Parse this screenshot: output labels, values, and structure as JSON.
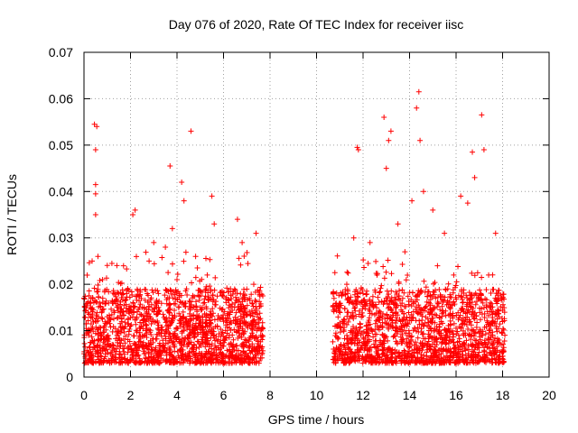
{
  "chart_data": {
    "type": "scatter",
    "title": "Day 076 of 2020, Rate Of TEC Index for receiver iisc",
    "xlabel": "GPS time / hours",
    "ylabel": "ROTI / TECUs",
    "xlim": [
      0,
      20
    ],
    "ylim": [
      0,
      0.07
    ],
    "xticks": [
      0,
      2,
      4,
      6,
      8,
      10,
      12,
      14,
      16,
      18,
      20
    ],
    "xtick_labels": [
      "0",
      "2",
      "4",
      "6",
      "8",
      "10",
      "12",
      "14",
      "16",
      "18",
      "20"
    ],
    "yticks": [
      0,
      0.01,
      0.02,
      0.03,
      0.04,
      0.05,
      0.06,
      0.07
    ],
    "ytick_labels": [
      "0",
      "0.01",
      "0.02",
      "0.03",
      "0.04",
      "0.05",
      "0.06",
      "0.07"
    ],
    "grid": true,
    "legend": "none",
    "marker": "plus",
    "marker_color": "#ff0000",
    "series": [
      {
        "name": "ROTI",
        "segments": [
          {
            "x_start": 0.0,
            "x_end": 7.7
          },
          {
            "x_start": 10.7,
            "x_end": 18.1
          }
        ],
        "points": [
          [
            0.05,
            0.0065
          ],
          [
            0.1,
            0.0115
          ],
          [
            0.2,
            0.009
          ],
          [
            0.3,
            0.017
          ],
          [
            0.35,
            0.025
          ],
          [
            0.45,
            0.0545
          ],
          [
            0.5,
            0.0395
          ],
          [
            0.5,
            0.049
          ],
          [
            0.5,
            0.0415
          ],
          [
            0.5,
            0.035
          ],
          [
            0.55,
            0.054
          ],
          [
            0.6,
            0.026
          ],
          [
            0.8,
            0.021
          ],
          [
            1.0,
            0.013
          ],
          [
            1.2,
            0.0245
          ],
          [
            1.5,
            0.018
          ],
          [
            1.7,
            0.024
          ],
          [
            2.0,
            0.011
          ],
          [
            2.1,
            0.035
          ],
          [
            2.2,
            0.036
          ],
          [
            2.5,
            0.015
          ],
          [
            2.8,
            0.025
          ],
          [
            3.0,
            0.029
          ],
          [
            3.2,
            0.018
          ],
          [
            3.5,
            0.028
          ],
          [
            3.7,
            0.0455
          ],
          [
            3.8,
            0.032
          ],
          [
            4.0,
            0.021
          ],
          [
            4.2,
            0.042
          ],
          [
            4.3,
            0.038
          ],
          [
            4.6,
            0.053
          ],
          [
            4.8,
            0.026
          ],
          [
            5.0,
            0.015
          ],
          [
            5.3,
            0.022
          ],
          [
            5.5,
            0.039
          ],
          [
            5.6,
            0.033
          ],
          [
            6.0,
            0.012
          ],
          [
            6.3,
            0.019
          ],
          [
            6.6,
            0.034
          ],
          [
            6.8,
            0.029
          ],
          [
            7.0,
            0.011
          ],
          [
            7.3,
            0.02
          ],
          [
            7.4,
            0.031
          ],
          [
            7.6,
            0.009
          ],
          [
            10.8,
            0.011
          ],
          [
            11.0,
            0.015
          ],
          [
            11.3,
            0.02
          ],
          [
            11.6,
            0.03
          ],
          [
            11.75,
            0.0495
          ],
          [
            11.8,
            0.049
          ],
          [
            12.0,
            0.018
          ],
          [
            12.3,
            0.029
          ],
          [
            12.6,
            0.022
          ],
          [
            12.9,
            0.056
          ],
          [
            13.0,
            0.045
          ],
          [
            13.1,
            0.051
          ],
          [
            13.2,
            0.053
          ],
          [
            13.5,
            0.033
          ],
          [
            13.8,
            0.027
          ],
          [
            14.1,
            0.038
          ],
          [
            14.3,
            0.058
          ],
          [
            14.4,
            0.0615
          ],
          [
            14.45,
            0.051
          ],
          [
            14.6,
            0.04
          ],
          [
            15.0,
            0.036
          ],
          [
            15.2,
            0.024
          ],
          [
            15.5,
            0.031
          ],
          [
            15.9,
            0.022
          ],
          [
            16.2,
            0.039
          ],
          [
            16.5,
            0.0375
          ],
          [
            16.7,
            0.0485
          ],
          [
            16.8,
            0.043
          ],
          [
            17.1,
            0.0565
          ],
          [
            17.2,
            0.049
          ],
          [
            17.4,
            0.022
          ],
          [
            17.7,
            0.031
          ],
          [
            18.0,
            0.012
          ]
        ]
      }
    ]
  }
}
